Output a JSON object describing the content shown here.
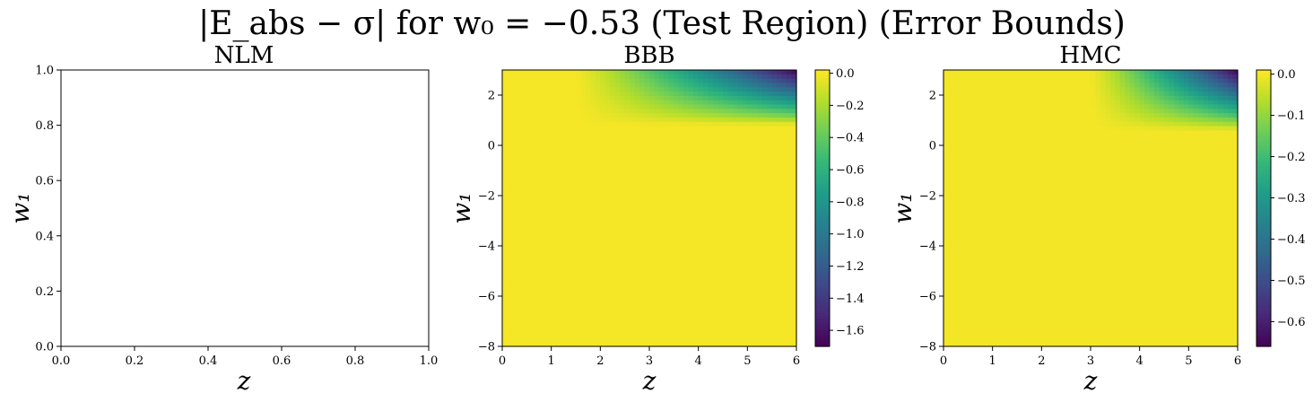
{
  "figure": {
    "title": "|E_abs − σ| for w₀ = −0.53 (Test Region) (Error Bounds)"
  },
  "colormap": {
    "name": "viridis",
    "stops": [
      "#440154",
      "#482878",
      "#3e4989",
      "#31688e",
      "#26828e",
      "#1f9e89",
      "#35b779",
      "#6ece58",
      "#b5de2b",
      "#fde725"
    ]
  },
  "chart_data": [
    {
      "type": "heatmap",
      "title": "NLM",
      "xlabel": "z",
      "ylabel": "w₁",
      "xlim": [
        0,
        1
      ],
      "ylim": [
        0,
        1
      ],
      "xticks": [
        "0.0",
        "0.2",
        "0.4",
        "0.6",
        "0.8",
        "1.0"
      ],
      "yticks": [
        "0.0",
        "0.2",
        "0.4",
        "0.6",
        "0.8",
        "1.0"
      ],
      "has_data": false
    },
    {
      "type": "heatmap",
      "title": "BBB",
      "xlabel": "z",
      "ylabel": "w₁",
      "xlim": [
        0,
        6
      ],
      "ylim": [
        -8,
        3
      ],
      "xticks": [
        "0",
        "1",
        "2",
        "3",
        "4",
        "5",
        "6"
      ],
      "yticks": [
        "−8",
        "−6",
        "−4",
        "−2",
        "0",
        "2"
      ],
      "has_data": true,
      "colorbar": {
        "range": [
          -1.7,
          0.02
        ],
        "ticks": [
          "0.0",
          "−0.2",
          "−0.4",
          "−0.6",
          "−0.8",
          "−1.0",
          "−1.2",
          "−1.4",
          "−1.6"
        ]
      },
      "field": {
        "min": -1.7,
        "peak_z": 6,
        "peak_w1": 3,
        "z_onset": 1.5,
        "w1_onset": 0.8
      }
    },
    {
      "type": "heatmap",
      "title": "HMC",
      "xlabel": "z",
      "ylabel": "w₁",
      "xlim": [
        0,
        6
      ],
      "ylim": [
        -8,
        3
      ],
      "xticks": [
        "0",
        "1",
        "2",
        "3",
        "4",
        "5",
        "6"
      ],
      "yticks": [
        "−8",
        "−6",
        "−4",
        "−2",
        "0",
        "2"
      ],
      "has_data": true,
      "colorbar": {
        "range": [
          -0.66,
          0.01
        ],
        "ticks": [
          "0.0",
          "−0.1",
          "−0.2",
          "−0.3",
          "−0.4",
          "−0.5",
          "−0.6"
        ]
      },
      "field": {
        "min": -0.66,
        "peak_z": 6,
        "peak_w1": 3,
        "z_onset": 3.0,
        "w1_onset": 0.6
      }
    }
  ]
}
